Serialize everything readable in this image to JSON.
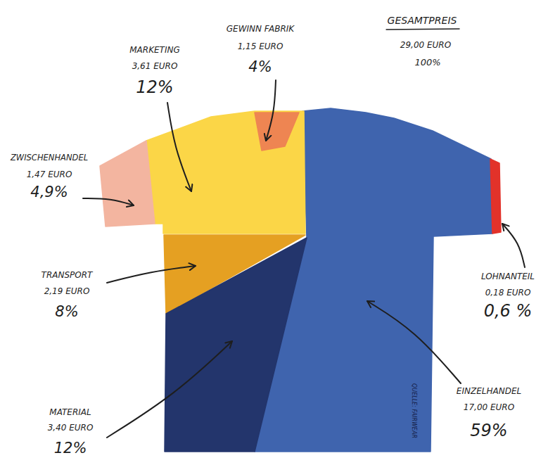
{
  "chart_data": {
    "type": "shirt",
    "title": "GESAMTPREIS",
    "total": 29,
    "total_label": "29,00 EURO",
    "total_percent": 100,
    "total_percent_label": "100%",
    "categories": [
      "MARKETING",
      "GEWINN FABRIK",
      "ZWISCHENHANDEL",
      "TRANSPORT",
      "MATERIAL",
      "EINZELHANDEL",
      "LOHNANTEIL"
    ],
    "values": [
      3.61,
      1.15,
      1.47,
      2.19,
      3.4,
      17.0,
      0.18
    ],
    "value_labels": [
      "3,61 EURO",
      "1,15 EURO",
      "1,47 EURO",
      "2,19 EURO",
      "3,40 EURO",
      "17,00 EURO",
      "0,18 EURO"
    ],
    "percents": [
      12,
      4,
      4.9,
      8,
      12,
      59,
      0.6
    ],
    "percent_labels": [
      "12%",
      "4%",
      "4,9%",
      "8%",
      "12%",
      "59%",
      "0,6 %"
    ],
    "colors": [
      "#fbd647",
      "#ee8552",
      "#f3b5a0",
      "#e5a022",
      "#23356c",
      "#3f64ae",
      "#e2322a"
    ],
    "data_labels": true,
    "source": "QUELLE: FAIRWEAR"
  }
}
